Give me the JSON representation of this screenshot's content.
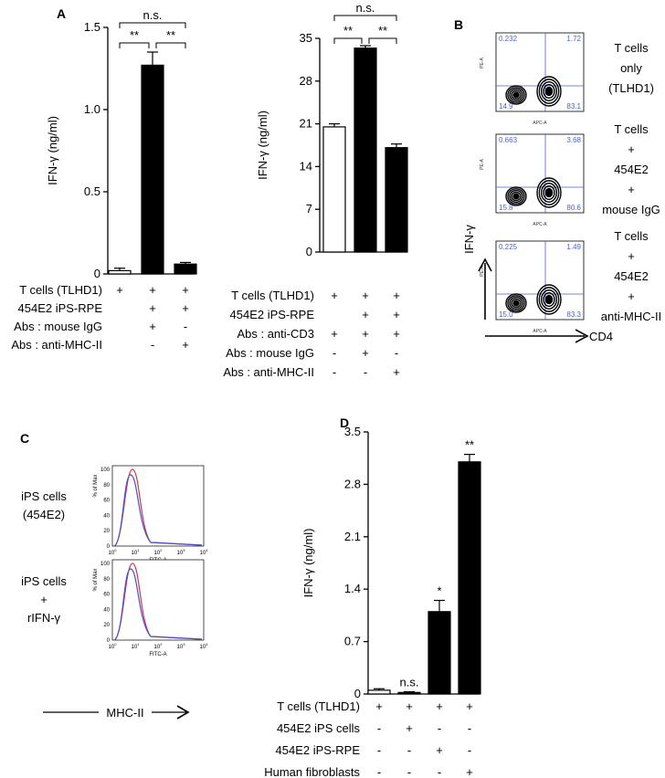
{
  "panel_letters": {
    "a": "A",
    "b": "B",
    "c": "C",
    "d": "D"
  },
  "chart_data": [
    {
      "panel": "A-left",
      "type": "bar",
      "ylabel": "IFN-γ (ng/ml)",
      "ylim": [
        0,
        1.5
      ],
      "yticks": [
        "0",
        "0.5",
        "1.0",
        "1.5"
      ],
      "categories": [
        "1",
        "2",
        "3"
      ],
      "values": [
        0.02,
        1.27,
        0.06
      ],
      "errors": [
        0.015,
        0.08,
        0.01
      ],
      "fills": [
        "#ffffff",
        "#000000",
        "#000000"
      ],
      "significance": [
        {
          "from": 0,
          "to": 1,
          "label": "**",
          "level": 1
        },
        {
          "from": 1,
          "to": 2,
          "label": "**",
          "level": 1
        },
        {
          "from": 0,
          "to": 2,
          "label": "n.s.",
          "level": 2
        }
      ],
      "rows": [
        {
          "label": "T cells (TLHD1)",
          "signs": [
            "+",
            "+",
            "+"
          ]
        },
        {
          "label": "454E2 iPS-RPE",
          "signs": [
            "",
            "+",
            "+"
          ]
        },
        {
          "label": "Abs : mouse IgG",
          "signs": [
            "",
            "+",
            "-"
          ]
        },
        {
          "label": "Abs : anti-MHC-II",
          "signs": [
            "",
            "-",
            "+"
          ]
        }
      ]
    },
    {
      "panel": "A-right",
      "type": "bar",
      "ylabel": "IFN-γ (ng/ml)",
      "ylim": [
        0,
        35
      ],
      "yticks": [
        "0",
        "7",
        "14",
        "21",
        "28",
        "35"
      ],
      "categories": [
        "1",
        "2",
        "3"
      ],
      "values": [
        20.5,
        33.4,
        17.1
      ],
      "errors": [
        0.5,
        0.4,
        0.6
      ],
      "fills": [
        "#ffffff",
        "#000000",
        "#000000"
      ],
      "significance": [
        {
          "from": 0,
          "to": 1,
          "label": "**",
          "level": 1
        },
        {
          "from": 1,
          "to": 2,
          "label": "**",
          "level": 1
        },
        {
          "from": 0,
          "to": 2,
          "label": "n.s.",
          "level": 2
        }
      ],
      "rows": [
        {
          "label": "T cells (TLHD1)",
          "signs": [
            "+",
            "+",
            "+"
          ]
        },
        {
          "label": "454E2 iPS-RPE",
          "signs": [
            "",
            "+",
            "+"
          ]
        },
        {
          "label": "Abs : anti-CD3",
          "signs": [
            "+",
            "+",
            "+"
          ]
        },
        {
          "label": "Abs : mouse IgG",
          "signs": [
            "-",
            "+",
            "-"
          ]
        },
        {
          "label": "Abs : anti-MHC-II",
          "signs": [
            "-",
            "-",
            "+"
          ]
        }
      ]
    },
    {
      "panel": "D",
      "type": "bar",
      "ylabel": "IFN-γ (ng/ml)",
      "ylim": [
        0,
        3.5
      ],
      "yticks": [
        "0",
        "0.7",
        "1.4",
        "2.1",
        "2.8",
        "3.5"
      ],
      "categories": [
        "1",
        "2",
        "3",
        "4"
      ],
      "values": [
        0.05,
        0.02,
        1.1,
        3.1
      ],
      "errors": [
        0.02,
        0.01,
        0.15,
        0.1
      ],
      "fills": [
        "#ffffff",
        "#000000",
        "#000000",
        "#000000"
      ],
      "bar_labels": [
        "",
        "n.s.",
        "*",
        "**"
      ],
      "rows": [
        {
          "label": "T cells (TLHD1)",
          "signs": [
            "+",
            "+",
            "+",
            "+"
          ]
        },
        {
          "label": "454E2 iPS cells",
          "signs": [
            "-",
            "+",
            "-",
            "-"
          ]
        },
        {
          "label": "454E2 iPS-RPE",
          "signs": [
            "-",
            "-",
            "+",
            "-"
          ]
        },
        {
          "label": "Human fibroblasts",
          "signs": [
            "-",
            "-",
            "-",
            "+"
          ]
        }
      ]
    }
  ],
  "panel_b": {
    "plots": [
      {
        "quadrants": [
          "0.232",
          "1.72",
          "14.9",
          "83.1"
        ],
        "caption": [
          "T cells",
          "only",
          "(TLHD1)"
        ]
      },
      {
        "quadrants": [
          "0.663",
          "3.68",
          "15.8",
          "80.6"
        ],
        "caption": [
          "T cells",
          "+",
          "454E2",
          "+",
          "mouse IgG"
        ]
      },
      {
        "quadrants": [
          "0.225",
          "1.49",
          "15.0",
          "83.3"
        ],
        "caption": [
          "T cells",
          "+",
          "454E2",
          "+",
          "anti-MHC-II"
        ]
      }
    ],
    "x_axis_name": "APC-A",
    "y_axis_name": "PE-A",
    "ifn_label": "IFN-γ",
    "cd4_label": "CD4"
  },
  "panel_c": {
    "plots": [
      {
        "label": [
          "iPS cells",
          "(454E2)"
        ]
      },
      {
        "label": [
          "iPS cells",
          "+",
          "rIFN-γ"
        ]
      }
    ],
    "y_axis_name": "% of Max",
    "x_axis_name": "FITC-A",
    "yticks": [
      "0",
      "20",
      "40",
      "60",
      "80",
      "100"
    ],
    "mhc_label": "MHC-II",
    "colors": {
      "red": "#d8344a",
      "blue": "#4451c9"
    }
  }
}
